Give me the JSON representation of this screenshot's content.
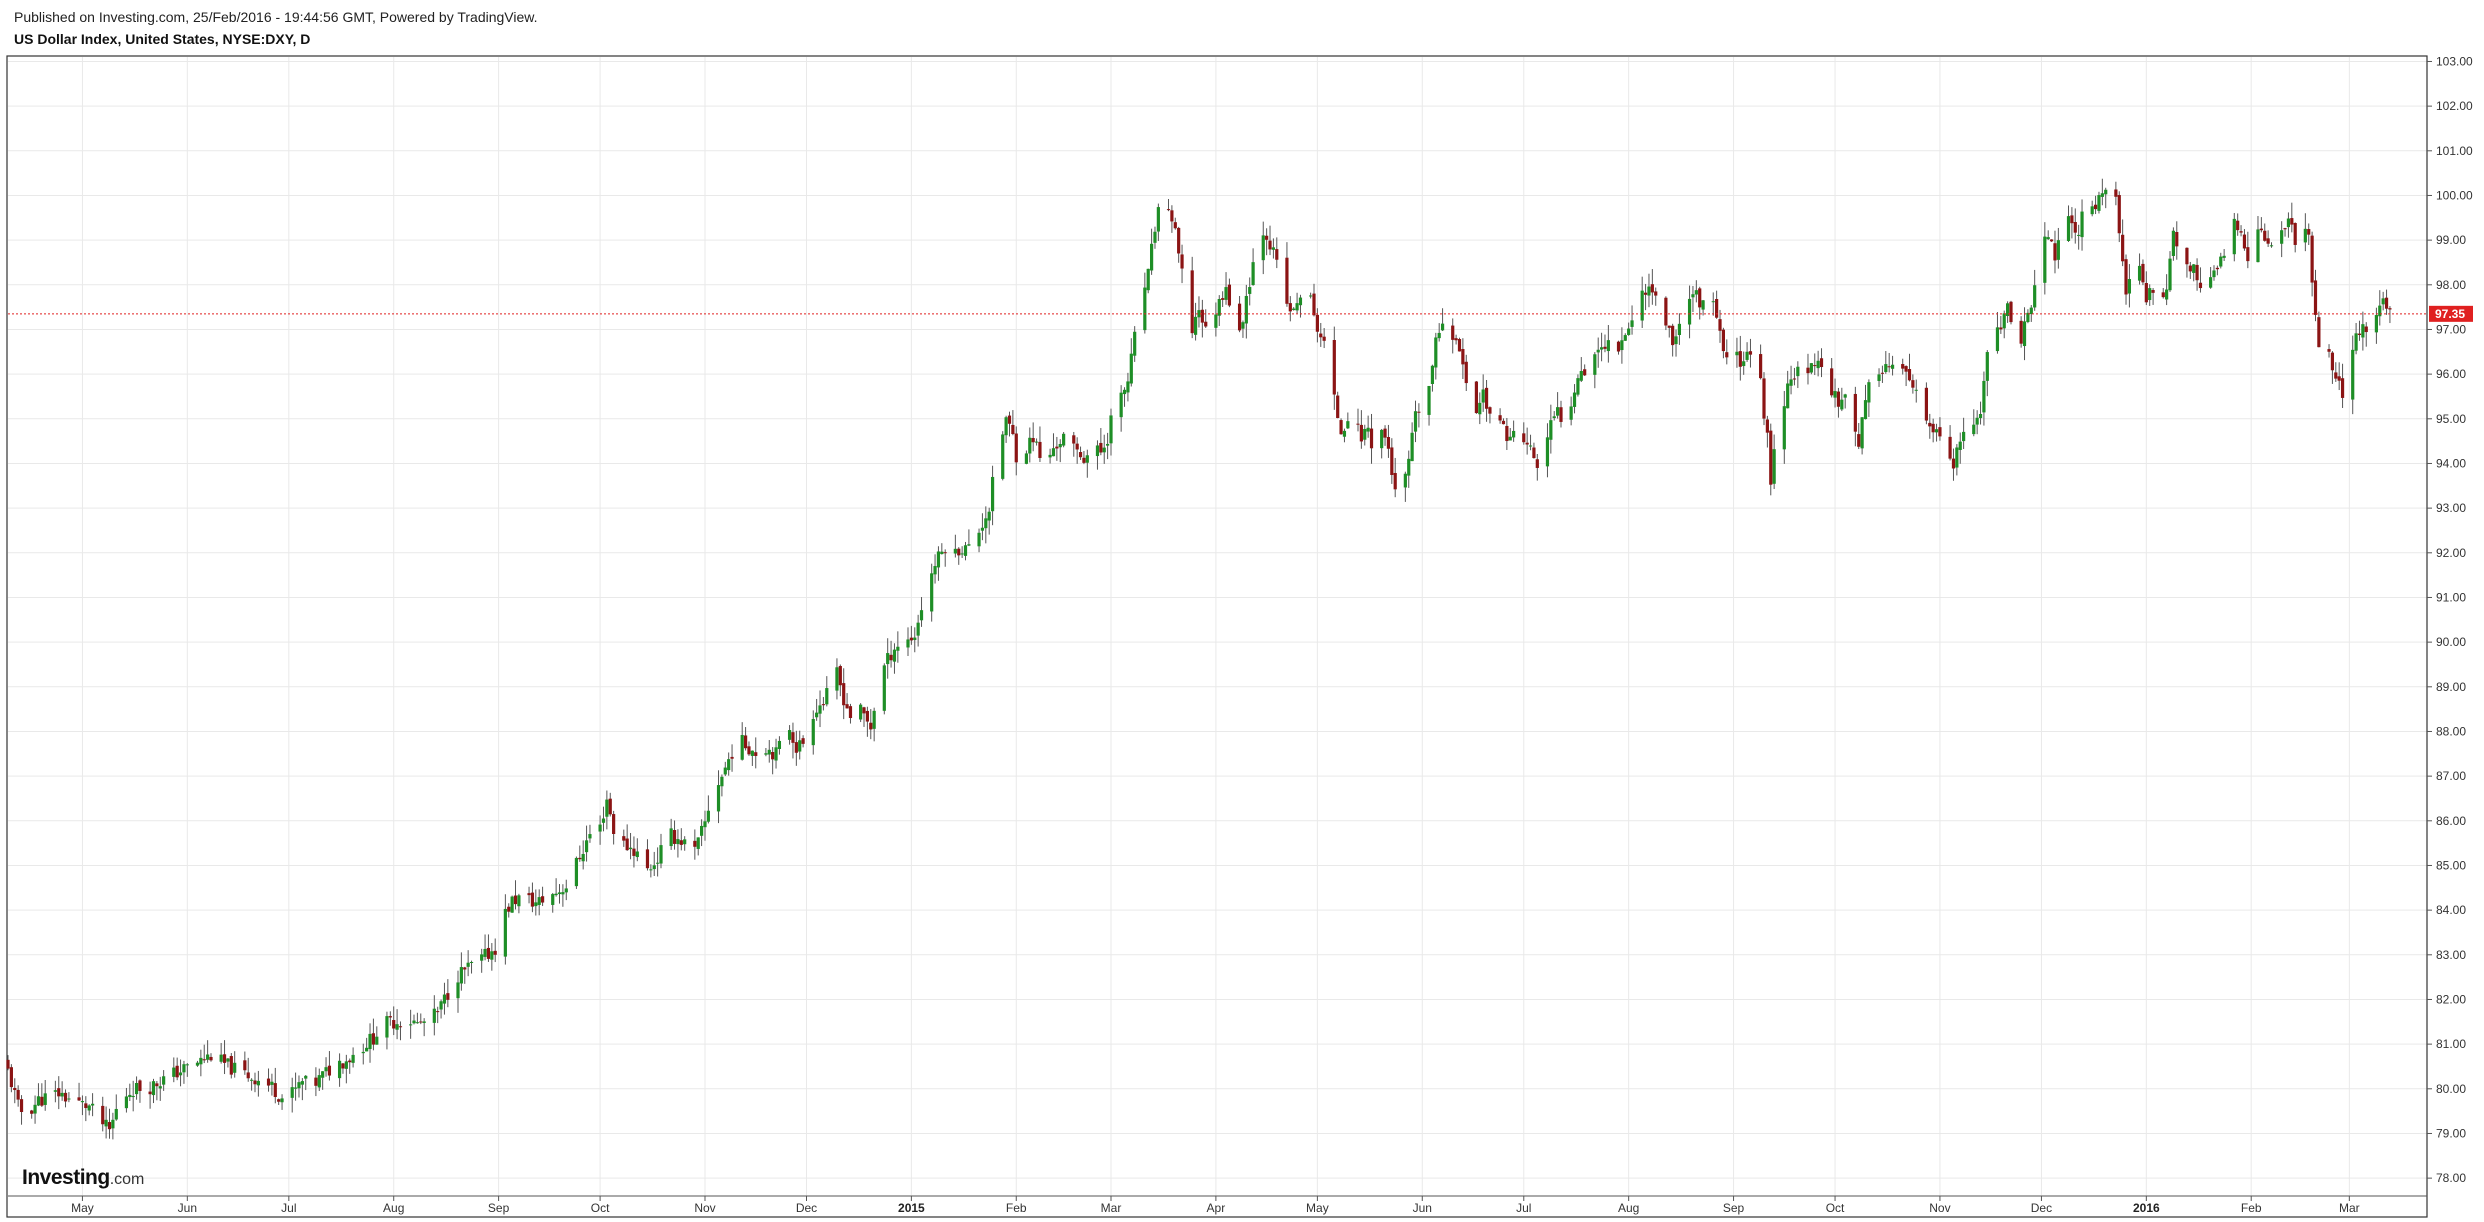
{
  "header": {
    "published": "Published on Investing.com, 25/Feb/2016 - 19:44:56 GMT, Powered by TradingView.",
    "title": "US Dollar Index, United States, NYSE:DXY, D"
  },
  "logo": {
    "name": "Investing",
    "suffix": ".com"
  },
  "colors": {
    "up": "#1e8e26",
    "down": "#8b1414",
    "wick": "#555555",
    "last_price": "#e02020",
    "grid": "#e9e9e9"
  },
  "chart_data": {
    "type": "candlestick",
    "ylim": [
      77.6,
      103.1
    ],
    "yticks": [
      "78.00",
      "79.00",
      "80.00",
      "81.00",
      "82.00",
      "83.00",
      "84.00",
      "85.00",
      "86.00",
      "87.00",
      "88.00",
      "89.00",
      "90.00",
      "91.00",
      "92.00",
      "93.00",
      "94.00",
      "95.00",
      "96.00",
      "97.00",
      "98.00",
      "99.00",
      "100.00",
      "101.00",
      "102.00",
      "103.00"
    ],
    "xticks": [
      {
        "label": "May",
        "day": 22,
        "bold": false
      },
      {
        "label": "Jun",
        "day": 53,
        "bold": false
      },
      {
        "label": "Jul",
        "day": 83,
        "bold": false
      },
      {
        "label": "Aug",
        "day": 114,
        "bold": false
      },
      {
        "label": "Sep",
        "day": 145,
        "bold": false
      },
      {
        "label": "Oct",
        "day": 175,
        "bold": false
      },
      {
        "label": "Nov",
        "day": 206,
        "bold": false
      },
      {
        "label": "Dec",
        "day": 236,
        "bold": false
      },
      {
        "label": "2015",
        "day": 267,
        "bold": true
      },
      {
        "label": "Feb",
        "day": 298,
        "bold": false
      },
      {
        "label": "Mar",
        "day": 326,
        "bold": false
      },
      {
        "label": "Apr",
        "day": 357,
        "bold": false
      },
      {
        "label": "May",
        "day": 387,
        "bold": false
      },
      {
        "label": "Jun",
        "day": 418,
        "bold": false
      },
      {
        "label": "Jul",
        "day": 448,
        "bold": false
      },
      {
        "label": "Aug",
        "day": 479,
        "bold": false
      },
      {
        "label": "Sep",
        "day": 510,
        "bold": false
      },
      {
        "label": "Oct",
        "day": 540,
        "bold": false
      },
      {
        "label": "Nov",
        "day": 571,
        "bold": false
      },
      {
        "label": "Dec",
        "day": 601,
        "bold": false
      },
      {
        "label": "2016",
        "day": 632,
        "bold": true
      },
      {
        "label": "Feb",
        "day": 663,
        "bold": false
      },
      {
        "label": "Mar",
        "day": 692,
        "bold": false
      }
    ],
    "last_price": 97.35,
    "last_price_label": "97.35",
    "close_path": [
      [
        0,
        80.4
      ],
      [
        3,
        79.6
      ],
      [
        5,
        79.4
      ],
      [
        9,
        79.75
      ],
      [
        15,
        79.9
      ],
      [
        20,
        79.7
      ],
      [
        24,
        79.6
      ],
      [
        27,
        79.3
      ],
      [
        30,
        79.05
      ],
      [
        33,
        79.75
      ],
      [
        37,
        80.0
      ],
      [
        42,
        80.05
      ],
      [
        48,
        80.3
      ],
      [
        55,
        80.55
      ],
      [
        60,
        80.75
      ],
      [
        64,
        80.55
      ],
      [
        68,
        80.4
      ],
      [
        74,
        80.2
      ],
      [
        78,
        80.05
      ],
      [
        81,
        79.8
      ],
      [
        84,
        79.9
      ],
      [
        87,
        80.15
      ],
      [
        90,
        80.05
      ],
      [
        93,
        80.3
      ],
      [
        97,
        80.55
      ],
      [
        101,
        80.7
      ],
      [
        104,
        80.9
      ],
      [
        108,
        81.15
      ],
      [
        111,
        81.45
      ],
      [
        114,
        81.5
      ],
      [
        118,
        81.55
      ],
      [
        121,
        81.45
      ],
      [
        124,
        81.5
      ],
      [
        127,
        81.7
      ],
      [
        130,
        82.15
      ],
      [
        133,
        82.55
      ],
      [
        136,
        82.7
      ],
      [
        140,
        82.9
      ],
      [
        144,
        83.15
      ],
      [
        146,
        83.8
      ],
      [
        149,
        84.2
      ],
      [
        152,
        84.3
      ],
      [
        156,
        84.15
      ],
      [
        160,
        84.3
      ],
      [
        165,
        84.55
      ],
      [
        169,
        85.2
      ],
      [
        172,
        85.7
      ],
      [
        175,
        85.85
      ],
      [
        177,
        86.5
      ],
      [
        179,
        85.8
      ],
      [
        181,
        85.5
      ],
      [
        184,
        85.4
      ],
      [
        187,
        85.2
      ],
      [
        189,
        84.9
      ],
      [
        192,
        85.15
      ],
      [
        195,
        85.7
      ],
      [
        198,
        85.6
      ],
      [
        200,
        85.5
      ],
      [
        203,
        85.3
      ],
      [
        206,
        85.95
      ],
      [
        208,
        86.6
      ],
      [
        211,
        87.0
      ],
      [
        214,
        87.55
      ],
      [
        217,
        87.75
      ],
      [
        221,
        87.55
      ],
      [
        224,
        87.65
      ],
      [
        227,
        87.5
      ],
      [
        229,
        87.85
      ],
      [
        231,
        88.1
      ],
      [
        233,
        87.65
      ],
      [
        235,
        87.75
      ],
      [
        237,
        88.3
      ],
      [
        239,
        88.55
      ],
      [
        241,
        88.65
      ],
      [
        243,
        88.95
      ],
      [
        245,
        89.3
      ],
      [
        247,
        88.75
      ],
      [
        249,
        88.35
      ],
      [
        251,
        88.55
      ],
      [
        253,
        88.35
      ],
      [
        255,
        88.1
      ],
      [
        257,
        88.95
      ],
      [
        259,
        89.45
      ],
      [
        262,
        89.9
      ],
      [
        265,
        90.0
      ],
      [
        268,
        90.15
      ],
      [
        271,
        91.1
      ],
      [
        274,
        91.75
      ],
      [
        277,
        92.15
      ],
      [
        279,
        91.85
      ],
      [
        281,
        92.1
      ],
      [
        284,
        92.1
      ],
      [
        287,
        92.5
      ],
      [
        290,
        93.0
      ],
      [
        292,
        94.05
      ],
      [
        295,
        95.0
      ],
      [
        297,
        94.6
      ],
      [
        299,
        93.8
      ],
      [
        301,
        94.35
      ],
      [
        303,
        94.6
      ],
      [
        305,
        94.15
      ],
      [
        307,
        93.9
      ],
      [
        309,
        94.35
      ],
      [
        311,
        94.5
      ],
      [
        313,
        94.65
      ],
      [
        315,
        94.3
      ],
      [
        318,
        94.15
      ],
      [
        321,
        94.3
      ],
      [
        323,
        94.25
      ],
      [
        325,
        94.6
      ],
      [
        327,
        95.4
      ],
      [
        329,
        95.45
      ],
      [
        331,
        95.85
      ],
      [
        333,
        96.8
      ],
      [
        335,
        97.75
      ],
      [
        337,
        98.2
      ],
      [
        339,
        99.3
      ],
      [
        341,
        100.0
      ],
      [
        343,
        99.75
      ],
      [
        345,
        99.1
      ],
      [
        347,
        98.2
      ],
      [
        348,
        97.4
      ],
      [
        350,
        97.0
      ],
      [
        352,
        97.5
      ],
      [
        354,
        96.95
      ],
      [
        356,
        97.3
      ],
      [
        358,
        97.6
      ],
      [
        360,
        98.05
      ],
      [
        362,
        97.2
      ],
      [
        364,
        96.85
      ],
      [
        366,
        97.75
      ],
      [
        368,
        98.5
      ],
      [
        370,
        99.3
      ],
      [
        372,
        99.15
      ],
      [
        374,
        98.7
      ],
      [
        376,
        98.2
      ],
      [
        378,
        97.55
      ],
      [
        380,
        97.35
      ],
      [
        382,
        97.8
      ],
      [
        384,
        98.05
      ],
      [
        386,
        97.25
      ],
      [
        388,
        96.85
      ],
      [
        390,
        96.5
      ],
      [
        392,
        95.4
      ],
      [
        394,
        94.75
      ],
      [
        396,
        95.05
      ],
      [
        398,
        94.85
      ],
      [
        400,
        94.6
      ],
      [
        402,
        94.8
      ],
      [
        404,
        94.15
      ],
      [
        406,
        94.75
      ],
      [
        408,
        94.35
      ],
      [
        410,
        93.3
      ],
      [
        412,
        93.25
      ],
      [
        414,
        94.05
      ],
      [
        416,
        95.0
      ],
      [
        418,
        95.4
      ],
      [
        420,
        95.7
      ],
      [
        422,
        96.65
      ],
      [
        424,
        97.25
      ],
      [
        426,
        96.8
      ],
      [
        428,
        96.9
      ],
      [
        430,
        96.1
      ],
      [
        432,
        95.65
      ],
      [
        434,
        95.2
      ],
      [
        436,
        95.6
      ],
      [
        438,
        95.1
      ],
      [
        440,
        94.85
      ],
      [
        442,
        94.8
      ],
      [
        444,
        94.55
      ],
      [
        446,
        94.75
      ],
      [
        448,
        94.5
      ],
      [
        450,
        94.3
      ],
      [
        452,
        93.95
      ],
      [
        454,
        94.25
      ],
      [
        456,
        94.85
      ],
      [
        458,
        95.15
      ],
      [
        460,
        94.95
      ],
      [
        462,
        95.4
      ],
      [
        464,
        96.05
      ],
      [
        466,
        96.1
      ],
      [
        468,
        96.4
      ],
      [
        470,
        96.6
      ],
      [
        472,
        96.55
      ],
      [
        474,
        97.05
      ],
      [
        476,
        96.65
      ],
      [
        478,
        96.95
      ],
      [
        480,
        97.2
      ],
      [
        482,
        97.65
      ],
      [
        484,
        97.95
      ],
      [
        486,
        97.9
      ],
      [
        488,
        97.45
      ],
      [
        490,
        97.15
      ],
      [
        492,
        96.75
      ],
      [
        494,
        97.05
      ],
      [
        496,
        97.8
      ],
      [
        498,
        97.85
      ],
      [
        500,
        97.65
      ],
      [
        502,
        97.35
      ],
      [
        504,
        97.5
      ],
      [
        506,
        96.85
      ],
      [
        508,
        96.25
      ],
      [
        510,
        96.55
      ],
      [
        512,
        96.3
      ],
      [
        514,
        96.6
      ],
      [
        516,
        96.15
      ],
      [
        518,
        95.75
      ],
      [
        520,
        94.6
      ],
      [
        521,
        93.6
      ],
      [
        523,
        94.85
      ],
      [
        525,
        95.45
      ],
      [
        527,
        96.0
      ],
      [
        529,
        96.05
      ],
      [
        531,
        95.65
      ],
      [
        533,
        96.15
      ],
      [
        535,
        96.3
      ],
      [
        537,
        95.95
      ],
      [
        539,
        95.7
      ],
      [
        541,
        95.35
      ],
      [
        543,
        95.6
      ],
      [
        545,
        94.95
      ],
      [
        547,
        94.5
      ],
      [
        549,
        95.3
      ],
      [
        551,
        96.0
      ],
      [
        553,
        96.15
      ],
      [
        555,
        96.2
      ],
      [
        557,
        96.1
      ],
      [
        559,
        96.3
      ],
      [
        561,
        95.9
      ],
      [
        563,
        95.65
      ],
      [
        565,
        95.3
      ],
      [
        567,
        94.95
      ],
      [
        569,
        94.75
      ],
      [
        571,
        94.55
      ],
      [
        573,
        94.15
      ],
      [
        575,
        93.95
      ],
      [
        577,
        94.45
      ],
      [
        579,
        94.85
      ],
      [
        581,
        94.7
      ],
      [
        583,
        95.1
      ],
      [
        585,
        96.65
      ],
      [
        587,
        97.2
      ],
      [
        589,
        96.85
      ],
      [
        591,
        97.6
      ],
      [
        593,
        96.95
      ],
      [
        595,
        96.85
      ],
      [
        597,
        97.25
      ],
      [
        599,
        98.0
      ],
      [
        601,
        99.15
      ],
      [
        603,
        98.95
      ],
      [
        605,
        98.7
      ],
      [
        607,
        99.05
      ],
      [
        609,
        99.4
      ],
      [
        611,
        99.05
      ],
      [
        613,
        99.5
      ],
      [
        615,
        99.7
      ],
      [
        617,
        99.85
      ],
      [
        619,
        100.1
      ],
      [
        621,
        100.1
      ],
      [
        623,
        99.9
      ],
      [
        625,
        98.6
      ],
      [
        626,
        97.65
      ],
      [
        628,
        98.45
      ],
      [
        630,
        98.3
      ],
      [
        632,
        97.6
      ],
      [
        634,
        97.95
      ],
      [
        636,
        97.6
      ],
      [
        638,
        98.0
      ],
      [
        640,
        99.15
      ],
      [
        642,
        98.7
      ],
      [
        644,
        98.4
      ],
      [
        646,
        98.3
      ],
      [
        648,
        98.1
      ],
      [
        650,
        97.95
      ],
      [
        652,
        98.2
      ],
      [
        654,
        98.65
      ],
      [
        656,
        98.85
      ],
      [
        658,
        99.35
      ],
      [
        660,
        99.0
      ],
      [
        662,
        98.7
      ],
      [
        664,
        99.05
      ],
      [
        666,
        99.2
      ],
      [
        668,
        98.95
      ],
      [
        670,
        99.15
      ],
      [
        672,
        99.05
      ],
      [
        674,
        99.5
      ],
      [
        676,
        98.9
      ],
      [
        678,
        99.45
      ],
      [
        680,
        99.05
      ],
      [
        682,
        97.2
      ],
      [
        684,
        96.35
      ],
      [
        686,
        96.5
      ],
      [
        688,
        95.9
      ],
      [
        690,
        95.6
      ],
      [
        692,
        96.05
      ],
      [
        694,
        96.8
      ],
      [
        696,
        97.05
      ],
      [
        698,
        97.0
      ],
      [
        700,
        97.3
      ],
      [
        702,
        97.6
      ],
      [
        704,
        97.4
      ],
      [
        706,
        97.35
      ]
    ]
  }
}
